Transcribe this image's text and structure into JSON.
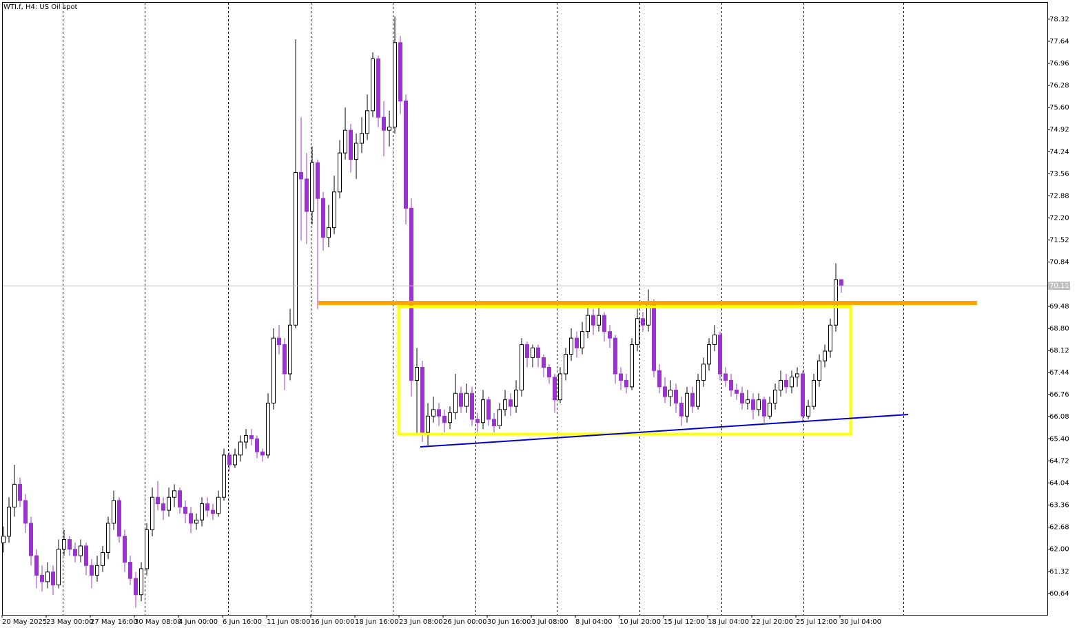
{
  "chart_data": {
    "type": "candlestick",
    "title": "WTI.f, H4:  US Oil spot",
    "up_color": "#ffffff",
    "down_color": "#9933cc",
    "ylim": [
      59.98,
      78.91
    ],
    "yticks": [
      78.32,
      77.64,
      76.96,
      76.28,
      {
        "value": 75.6,
        "label": "75.60"
      },
      74.92,
      74.24,
      73.56,
      72.88,
      {
        "value": 72.2,
        "label": "72.20"
      },
      71.52,
      70.84,
      69.48,
      {
        "value": 68.8,
        "label": "68.80"
      },
      68.12,
      67.44,
      66.76,
      66.08,
      {
        "value": 65.4,
        "label": "65.40"
      },
      64.72,
      64.04,
      63.36,
      62.68,
      {
        "value": 62,
        "label": "62.00"
      },
      61.32,
      60.64
    ],
    "last_price": 70.11,
    "categories": [
      "20 May 2025",
      "23 May 00:00",
      "27 May 16:00",
      "30 May 08:00",
      "4 Jun 00:00",
      "6 Jun 16:00",
      "11 Jun 08:00",
      "16 Jun 00:00",
      "18 Jun 16:00",
      "23 Jun 08:00",
      "26 Jun 00:00",
      "30 Jun 16:00",
      "3 Jul 08:00",
      "8 Jul 04:00",
      "10 Jul 20:00",
      "15 Jul 12:00",
      "18 Jul 04:00",
      "22 Jul 20:00",
      "25 Jul 12:00",
      "30 Jul 04:00"
    ],
    "ohlc": [
      [
        62.2,
        62.7,
        61.9,
        62.4
      ],
      [
        62.4,
        63.6,
        62.2,
        63.3
      ],
      [
        63.3,
        64.6,
        63.0,
        64.0
      ],
      [
        64.0,
        64.2,
        63.3,
        63.5
      ],
      [
        63.5,
        63.7,
        62.5,
        62.8
      ],
      [
        62.8,
        63.0,
        61.5,
        61.8
      ],
      [
        61.8,
        62.0,
        60.8,
        61.2
      ],
      [
        61.2,
        61.5,
        60.7,
        61.0
      ],
      [
        61.0,
        61.6,
        60.8,
        61.3
      ],
      [
        61.3,
        61.5,
        60.6,
        60.9
      ],
      [
        60.9,
        62.3,
        60.8,
        62.0
      ],
      [
        62.0,
        62.6,
        61.8,
        62.3
      ],
      [
        62.3,
        62.4,
        61.8,
        62.0
      ],
      [
        62.0,
        62.2,
        61.6,
        61.8
      ],
      [
        61.8,
        62.3,
        61.6,
        62.1
      ],
      [
        62.1,
        62.2,
        61.2,
        61.5
      ],
      [
        61.5,
        61.7,
        60.8,
        61.2
      ],
      [
        61.2,
        61.8,
        61.0,
        61.5
      ],
      [
        61.5,
        62.1,
        61.3,
        61.9
      ],
      [
        61.9,
        63.0,
        61.7,
        62.8
      ],
      [
        62.8,
        63.8,
        62.6,
        63.5
      ],
      [
        63.5,
        63.6,
        62.2,
        62.4
      ],
      [
        62.4,
        62.6,
        61.3,
        61.6
      ],
      [
        61.6,
        61.8,
        60.9,
        61.1
      ],
      [
        61.1,
        61.3,
        60.2,
        60.6
      ],
      [
        60.6,
        61.6,
        60.4,
        61.4
      ],
      [
        61.4,
        62.8,
        61.2,
        62.6
      ],
      [
        62.6,
        63.9,
        62.4,
        63.6
      ],
      [
        63.6,
        64.1,
        63.2,
        63.4
      ],
      [
        63.4,
        63.6,
        62.9,
        63.2
      ],
      [
        63.2,
        63.9,
        63.0,
        63.6
      ],
      [
        63.6,
        64.0,
        63.3,
        63.8
      ],
      [
        63.8,
        63.9,
        63.1,
        63.3
      ],
      [
        63.3,
        63.5,
        62.8,
        63.1
      ],
      [
        63.1,
        63.3,
        62.5,
        62.8
      ],
      [
        62.8,
        63.1,
        62.6,
        62.9
      ],
      [
        62.9,
        63.6,
        62.7,
        63.4
      ],
      [
        63.4,
        63.6,
        63.0,
        63.2
      ],
      [
        63.2,
        63.4,
        62.9,
        63.1
      ],
      [
        63.1,
        63.8,
        63.0,
        63.6
      ],
      [
        63.6,
        65.1,
        63.5,
        64.9
      ],
      [
        64.9,
        65.0,
        64.4,
        64.6
      ],
      [
        64.6,
        65.1,
        64.5,
        64.9
      ],
      [
        64.9,
        65.5,
        64.7,
        65.3
      ],
      [
        65.3,
        65.7,
        65.1,
        65.5
      ],
      [
        65.5,
        65.7,
        65.2,
        65.4
      ],
      [
        65.4,
        65.5,
        64.8,
        65.0
      ],
      [
        65.0,
        65.1,
        64.7,
        64.9
      ],
      [
        64.9,
        66.8,
        64.8,
        66.5
      ],
      [
        66.5,
        68.8,
        66.3,
        68.5
      ],
      [
        68.5,
        68.9,
        68.0,
        68.3
      ],
      [
        68.3,
        68.5,
        66.9,
        67.4
      ],
      [
        67.4,
        69.4,
        67.2,
        68.9
      ],
      [
        68.9,
        77.7,
        68.8,
        73.6
      ],
      [
        73.6,
        75.3,
        71.5,
        73.4
      ],
      [
        73.4,
        74.2,
        71.4,
        72.4
      ],
      [
        72.4,
        74.4,
        72.0,
        73.9
      ],
      [
        73.9,
        74.0,
        69.4,
        72.8
      ],
      [
        72.8,
        73.0,
        71.2,
        71.6
      ],
      [
        71.6,
        72.6,
        71.3,
        71.9
      ],
      [
        71.9,
        73.5,
        71.7,
        73.0
      ],
      [
        73.0,
        74.6,
        72.8,
        74.2
      ],
      [
        74.2,
        75.6,
        74.0,
        74.9
      ],
      [
        74.9,
        75.1,
        73.6,
        74.0
      ],
      [
        74.0,
        74.8,
        73.4,
        74.5
      ],
      [
        74.5,
        75.3,
        74.2,
        74.8
      ],
      [
        74.8,
        76.0,
        74.6,
        75.5
      ],
      [
        75.5,
        77.3,
        75.3,
        77.1
      ],
      [
        77.1,
        77.2,
        75.0,
        75.3
      ],
      [
        75.3,
        75.8,
        74.1,
        74.9
      ],
      [
        74.9,
        75.5,
        74.4,
        75.0
      ],
      [
        75.0,
        78.4,
        74.8,
        77.6
      ],
      [
        77.6,
        77.8,
        75.4,
        75.8
      ],
      [
        75.8,
        76.0,
        72.0,
        72.5
      ],
      [
        72.5,
        72.8,
        66.7,
        67.2
      ],
      [
        67.2,
        68.2,
        65.5,
        67.6
      ],
      [
        67.6,
        67.8,
        65.3,
        65.6
      ],
      [
        65.6,
        66.5,
        65.2,
        66.1
      ],
      [
        66.1,
        66.7,
        65.9,
        66.3
      ],
      [
        66.3,
        66.5,
        65.8,
        66.1
      ],
      [
        66.1,
        66.3,
        65.6,
        65.9
      ],
      [
        65.9,
        66.4,
        65.7,
        66.2
      ],
      [
        66.2,
        67.4,
        66.0,
        66.8
      ],
      [
        66.8,
        67.0,
        66.2,
        66.4
      ],
      [
        66.4,
        67.1,
        66.2,
        66.8
      ],
      [
        66.8,
        67.0,
        65.8,
        66.0
      ],
      [
        66.0,
        66.2,
        65.6,
        65.9
      ],
      [
        65.9,
        66.9,
        65.7,
        66.6
      ],
      [
        66.6,
        66.7,
        65.8,
        66.0
      ],
      [
        66.0,
        66.2,
        65.6,
        65.8
      ],
      [
        65.8,
        66.5,
        65.7,
        66.3
      ],
      [
        66.3,
        66.9,
        66.1,
        66.6
      ],
      [
        66.6,
        66.8,
        66.1,
        66.4
      ],
      [
        66.4,
        67.2,
        66.2,
        66.9
      ],
      [
        66.9,
        68.5,
        66.7,
        68.3
      ],
      [
        68.3,
        68.4,
        67.6,
        67.9
      ],
      [
        67.9,
        68.3,
        67.6,
        68.2
      ],
      [
        68.2,
        68.3,
        67.6,
        67.9
      ],
      [
        67.9,
        68.0,
        67.3,
        67.6
      ],
      [
        67.6,
        67.7,
        67.1,
        67.3
      ],
      [
        67.3,
        67.4,
        66.2,
        66.6
      ],
      [
        66.6,
        67.6,
        66.5,
        67.4
      ],
      [
        67.4,
        68.2,
        67.2,
        68.0
      ],
      [
        68.0,
        68.8,
        67.8,
        68.5
      ],
      [
        68.5,
        68.7,
        67.9,
        68.2
      ],
      [
        68.2,
        69.0,
        68.0,
        68.7
      ],
      [
        68.7,
        69.5,
        68.5,
        69.2
      ],
      [
        69.2,
        69.4,
        68.6,
        68.9
      ],
      [
        68.9,
        69.5,
        68.7,
        69.2
      ],
      [
        69.2,
        69.3,
        68.4,
        68.7
      ],
      [
        68.7,
        68.9,
        68.2,
        68.5
      ],
      [
        68.5,
        68.6,
        67.1,
        67.4
      ],
      [
        67.4,
        67.6,
        66.9,
        67.2
      ],
      [
        67.2,
        67.4,
        66.8,
        67.0
      ],
      [
        67.0,
        68.5,
        66.9,
        68.3
      ],
      [
        68.3,
        69.4,
        68.1,
        69.1
      ],
      [
        69.1,
        69.3,
        68.7,
        68.9
      ],
      [
        68.9,
        70.0,
        68.7,
        69.6
      ],
      [
        69.6,
        69.7,
        67.3,
        67.5
      ],
      [
        67.5,
        67.7,
        66.8,
        67.0
      ],
      [
        67.0,
        67.3,
        66.5,
        66.7
      ],
      [
        66.7,
        67.2,
        66.4,
        66.9
      ],
      [
        66.9,
        67.1,
        66.2,
        66.5
      ],
      [
        66.5,
        66.7,
        65.8,
        66.1
      ],
      [
        66.1,
        67.0,
        65.9,
        66.8
      ],
      [
        66.8,
        67.0,
        66.2,
        66.4
      ],
      [
        66.4,
        67.4,
        66.3,
        67.2
      ],
      [
        67.2,
        67.9,
        67.0,
        67.7
      ],
      [
        67.7,
        68.5,
        67.5,
        68.3
      ],
      [
        68.3,
        68.9,
        68.1,
        68.6
      ],
      [
        68.6,
        68.7,
        67.2,
        67.4
      ],
      [
        67.4,
        67.6,
        67.0,
        67.2
      ],
      [
        67.2,
        67.4,
        66.7,
        66.9
      ],
      [
        66.9,
        67.1,
        66.6,
        66.8
      ],
      [
        66.8,
        67.0,
        66.3,
        66.5
      ],
      [
        66.5,
        66.9,
        66.3,
        66.6
      ],
      [
        66.6,
        66.8,
        66.0,
        66.3
      ],
      [
        66.3,
        66.8,
        66.1,
        66.6
      ],
      [
        66.6,
        66.7,
        65.9,
        66.1
      ],
      [
        66.1,
        66.7,
        66.0,
        66.5
      ],
      [
        66.5,
        67.1,
        66.3,
        66.9
      ],
      [
        66.9,
        67.5,
        66.7,
        67.2
      ],
      [
        67.2,
        67.4,
        66.8,
        67.0
      ],
      [
        67.0,
        67.5,
        66.8,
        67.3
      ],
      [
        67.3,
        67.6,
        67.0,
        67.4
      ],
      [
        67.4,
        67.5,
        65.9,
        66.1
      ],
      [
        66.1,
        66.6,
        66.0,
        66.4
      ],
      [
        66.4,
        67.4,
        66.3,
        67.2
      ],
      [
        67.2,
        68.0,
        67.0,
        67.8
      ],
      [
        67.8,
        68.3,
        67.6,
        68.1
      ],
      [
        68.1,
        69.1,
        67.9,
        68.9
      ],
      [
        68.9,
        70.8,
        68.7,
        70.3
      ],
      [
        70.3,
        70.3,
        69.9,
        70.11
      ]
    ]
  }
}
